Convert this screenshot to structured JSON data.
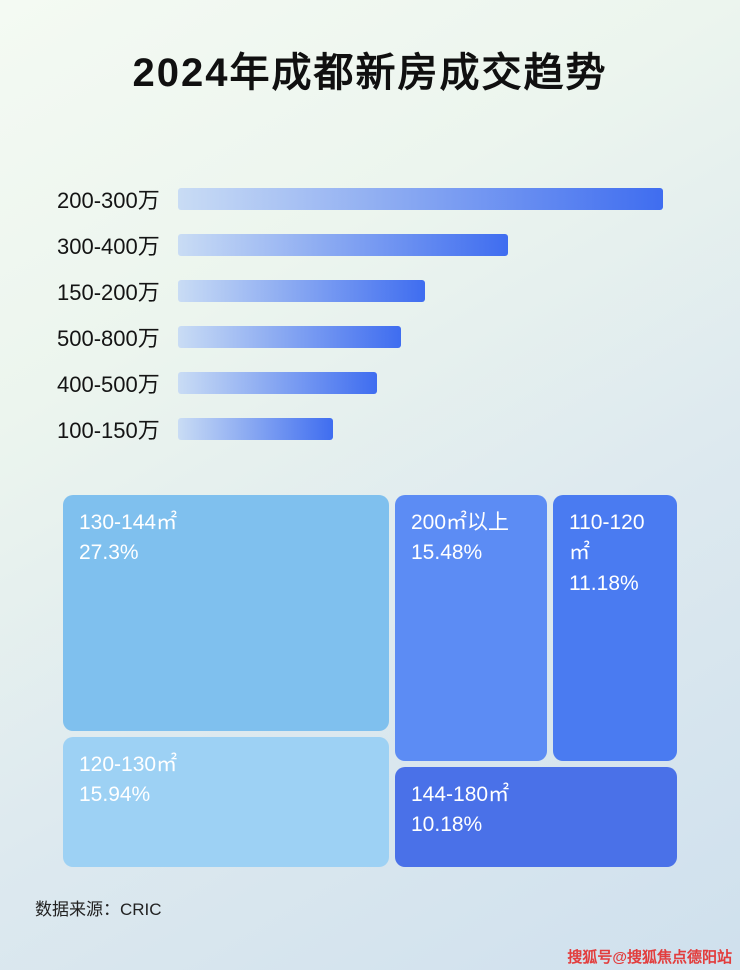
{
  "page": {
    "title": "2024年成都新房成交趋势",
    "footer": {
      "source": "数据来源：CRIC"
    },
    "watermark": "搜狐号@搜狐焦点德阳站"
  },
  "colors": {
    "title": "#101010",
    "bar-start": "#c9dcf4",
    "bar-end": "#3f6df0",
    "block-130-144": "#7fc0ee",
    "block-120-130": "#9dd1f4",
    "block-200-plus": "#5c8cf4",
    "block-110-120": "#4a7bf1",
    "block-144-180": "#4a71e8",
    "watermark": "#e23d3d"
  },
  "chart_data": [
    {
      "type": "bar",
      "orientation": "horizontal",
      "title": "2024年成都新房成交趋势",
      "categories": [
        "200-300万",
        "300-400万",
        "150-200万",
        "500-800万",
        "400-500万",
        "100-150万"
      ],
      "values": [
        100,
        68,
        51,
        46,
        41,
        32
      ],
      "value_unit": "percent_of_longest_bar",
      "note": "no numeric axis or data labels shown; lengths estimated relative to longest bar",
      "grid": false,
      "legend": false
    },
    {
      "type": "treemap",
      "title": "",
      "items": [
        {
          "label": "130-144㎡",
          "pct": "27.3%",
          "value": 27.3
        },
        {
          "label": "200㎡以上",
          "pct": "15.48%",
          "value": 15.48
        },
        {
          "label": "110-120㎡",
          "pct": "11.18%",
          "value": 11.18
        },
        {
          "label": "120-130㎡",
          "pct": "15.94%",
          "value": 15.94
        },
        {
          "label": "144-180㎡",
          "pct": "10.18%",
          "value": 10.18
        }
      ]
    }
  ]
}
